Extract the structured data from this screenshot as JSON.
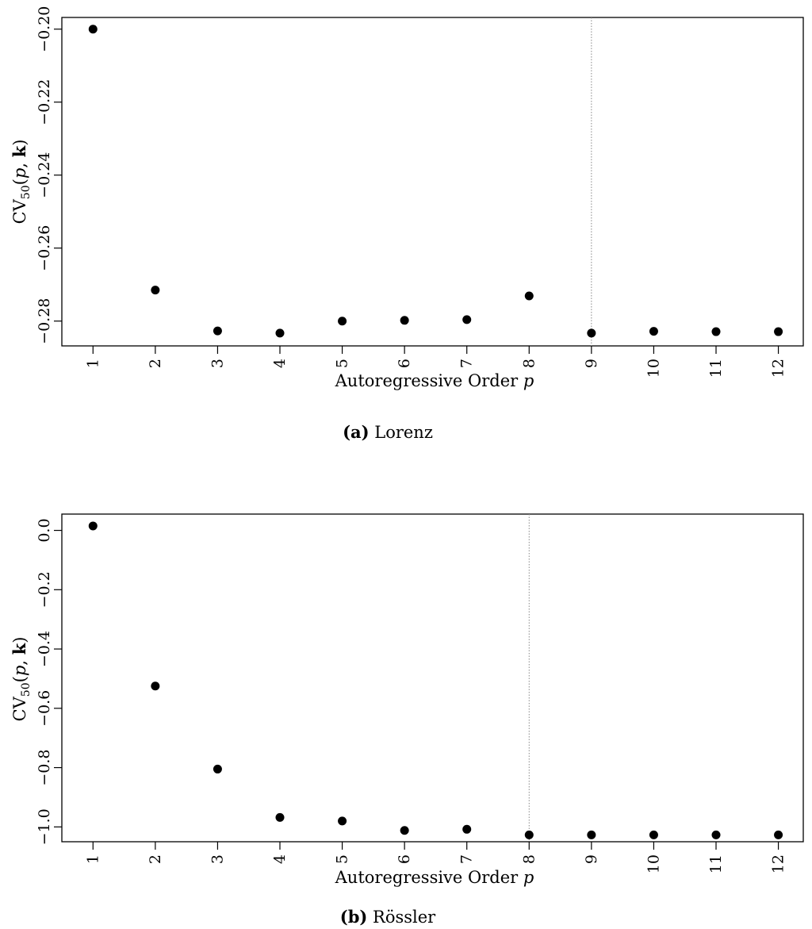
{
  "chart_data": [
    {
      "type": "scatter",
      "xlabel": "Autoregressive Order",
      "xlabel_var": "p",
      "ylabel_base": "CV",
      "ylabel_sub": "50",
      "ylabel_open": "(",
      "ylabel_p": "p",
      "ylabel_sep": ", ",
      "ylabel_k": "k",
      "ylabel_close": ")",
      "caption_tag": "(a)",
      "caption_text": "Lorenz",
      "x": [
        1,
        2,
        3,
        4,
        5,
        6,
        7,
        8,
        9,
        10,
        11,
        12
      ],
      "y": [
        -0.2,
        -0.2715,
        -0.2827,
        -0.2833,
        -0.28,
        -0.2798,
        -0.2796,
        -0.2731,
        -0.2833,
        -0.2828,
        -0.2829,
        -0.2829
      ],
      "xlim": [
        0.5,
        12.4
      ],
      "ylim": [
        -0.2868,
        -0.1968
      ],
      "yticks": [
        -0.28,
        -0.26,
        -0.24,
        -0.22,
        -0.2
      ],
      "ytick_labels": [
        "−0.28",
        "−0.26",
        "−0.24",
        "−0.22",
        "−0.20"
      ],
      "xticks": [
        1,
        2,
        3,
        4,
        5,
        6,
        7,
        8,
        9,
        10,
        11,
        12
      ],
      "xtick_labels": [
        "1",
        "2",
        "3",
        "4",
        "5",
        "6",
        "7",
        "8",
        "9",
        "10",
        "11",
        "12"
      ],
      "vline_x": 9,
      "grid": false
    },
    {
      "type": "scatter",
      "xlabel": "Autoregressive Order",
      "xlabel_var": "p",
      "ylabel_base": "CV",
      "ylabel_sub": "50",
      "ylabel_open": "(",
      "ylabel_p": "p",
      "ylabel_sep": ", ",
      "ylabel_k": "k",
      "ylabel_close": ")",
      "caption_tag": "(b)",
      "caption_text": "Rössler",
      "x": [
        1,
        2,
        3,
        4,
        5,
        6,
        7,
        8,
        9,
        10,
        11,
        12
      ],
      "y": [
        0.015,
        -0.525,
        -0.805,
        -0.968,
        -0.98,
        -1.012,
        -1.008,
        -1.027,
        -1.027,
        -1.027,
        -1.027,
        -1.027
      ],
      "xlim": [
        0.5,
        12.4
      ],
      "ylim": [
        -1.05,
        0.055
      ],
      "yticks": [
        -1.0,
        -0.8,
        -0.6,
        -0.4,
        -0.2,
        0.0
      ],
      "ytick_labels": [
        "−1.0",
        "−0.8",
        "−0.6",
        "−0.4",
        "−0.2",
        "0.0"
      ],
      "xticks": [
        1,
        2,
        3,
        4,
        5,
        6,
        7,
        8,
        9,
        10,
        11,
        12
      ],
      "xtick_labels": [
        "1",
        "2",
        "3",
        "4",
        "5",
        "6",
        "7",
        "8",
        "9",
        "10",
        "11",
        "12"
      ],
      "vline_x": 8,
      "grid": false
    }
  ]
}
